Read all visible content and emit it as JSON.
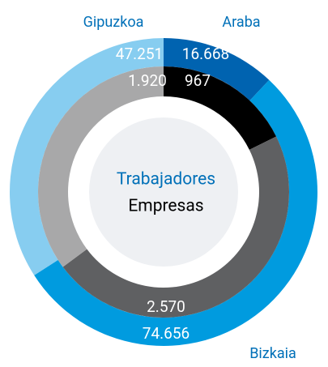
{
  "chart_data": {
    "type": "donut",
    "categories": [
      "Araba",
      "Bizkaia",
      "Gipuzkoa"
    ],
    "category_color": "#0070b8",
    "series": [
      {
        "name": "Trabajadores",
        "color": "#0070b8",
        "values": [
          16668,
          74656,
          47251
        ],
        "value_labels": [
          "16.668",
          "74.656",
          "47.251"
        ],
        "colors": [
          "#0063b0",
          "#009bdf",
          "#87cdf0"
        ]
      },
      {
        "name": "Empresas",
        "color": "#000000",
        "values": [
          967,
          2570,
          1920
        ],
        "value_labels": [
          "967",
          "2.570",
          "1.920"
        ],
        "colors": [
          "#000000",
          "#5f6062",
          "#a8a8a9"
        ]
      }
    ]
  }
}
